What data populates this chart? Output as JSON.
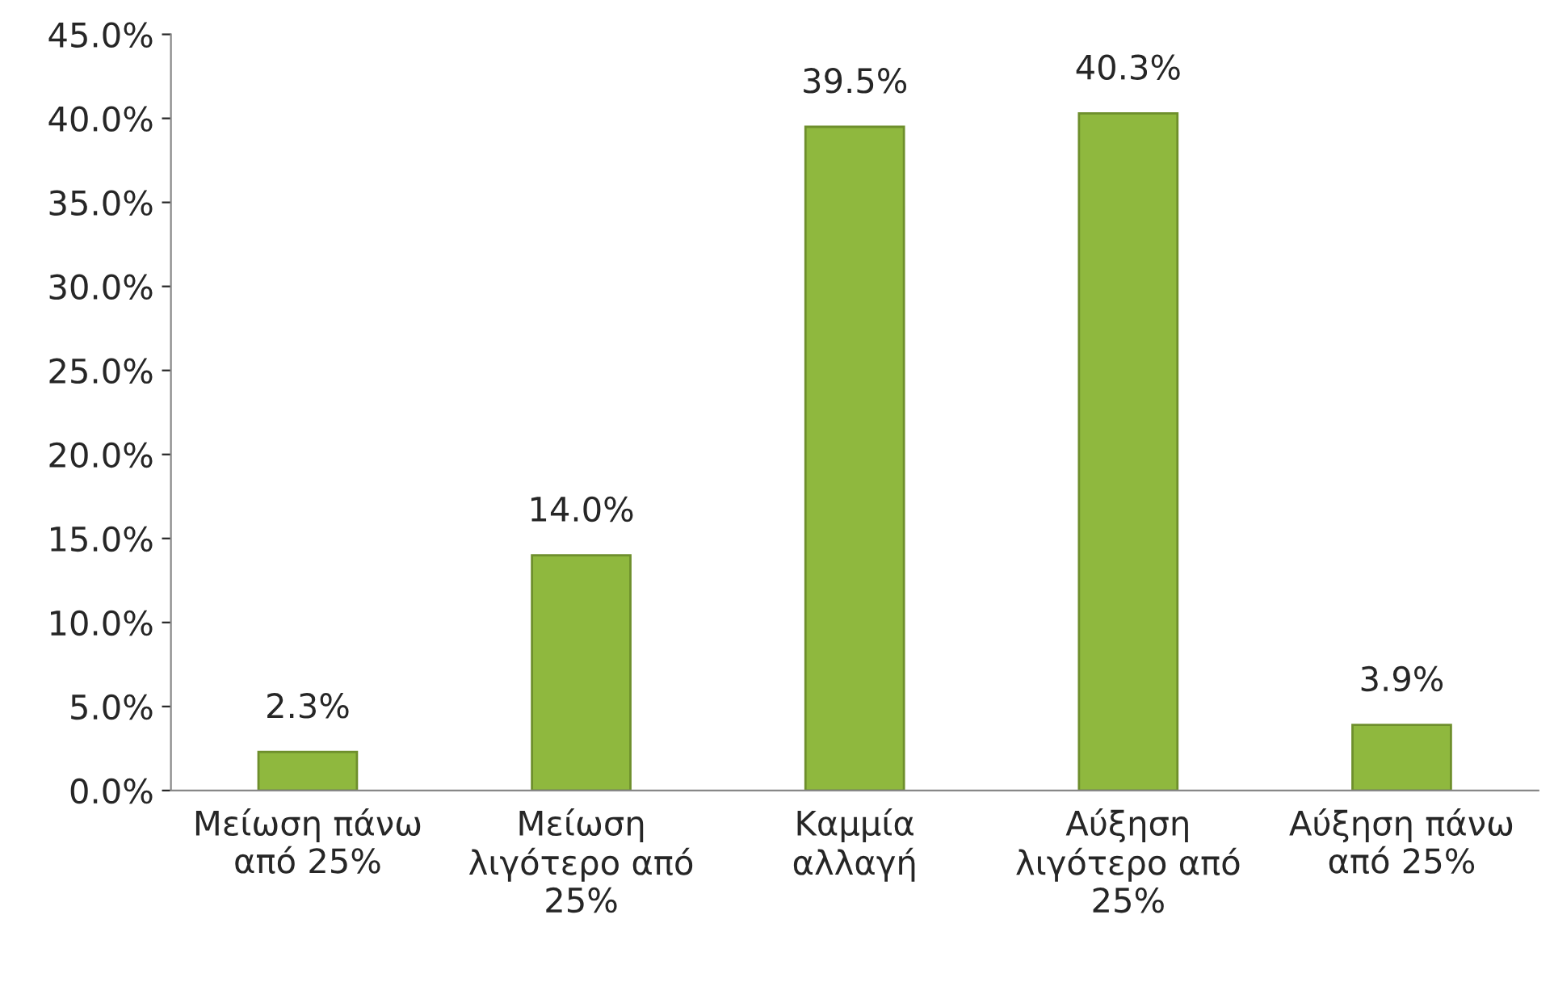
{
  "chart_data": {
    "type": "bar",
    "categories": [
      "Μείωση πάνω\nαπό 25%",
      "Μείωση\nλιγότερο από\n25%",
      "Καμμία\nαλλαγή",
      "Αύξηση\nλιγότερο από\n25%",
      "Αύξηση πάνω\nαπό 25%"
    ],
    "values": [
      2.3,
      14.0,
      39.5,
      40.3,
      3.9
    ],
    "value_labels": [
      "2.3%",
      "14.0%",
      "39.5%",
      "40.3%",
      "3.9%"
    ],
    "color": "#8fb83e",
    "ylim": [
      0,
      45
    ],
    "yticks": [
      {
        "value": 0,
        "label": "0.0%"
      },
      {
        "value": 5,
        "label": "5.0%"
      },
      {
        "value": 10,
        "label": "10.0%"
      },
      {
        "value": 15,
        "label": "15.0%"
      },
      {
        "value": 20,
        "label": "20.0%"
      },
      {
        "value": 25,
        "label": "25.0%"
      },
      {
        "value": 30,
        "label": "30.0%"
      },
      {
        "value": 35,
        "label": "35.0%"
      },
      {
        "value": 40,
        "label": "40.0%"
      },
      {
        "value": 45,
        "label": "45.0%"
      }
    ],
    "grid": false,
    "legend": false
  }
}
